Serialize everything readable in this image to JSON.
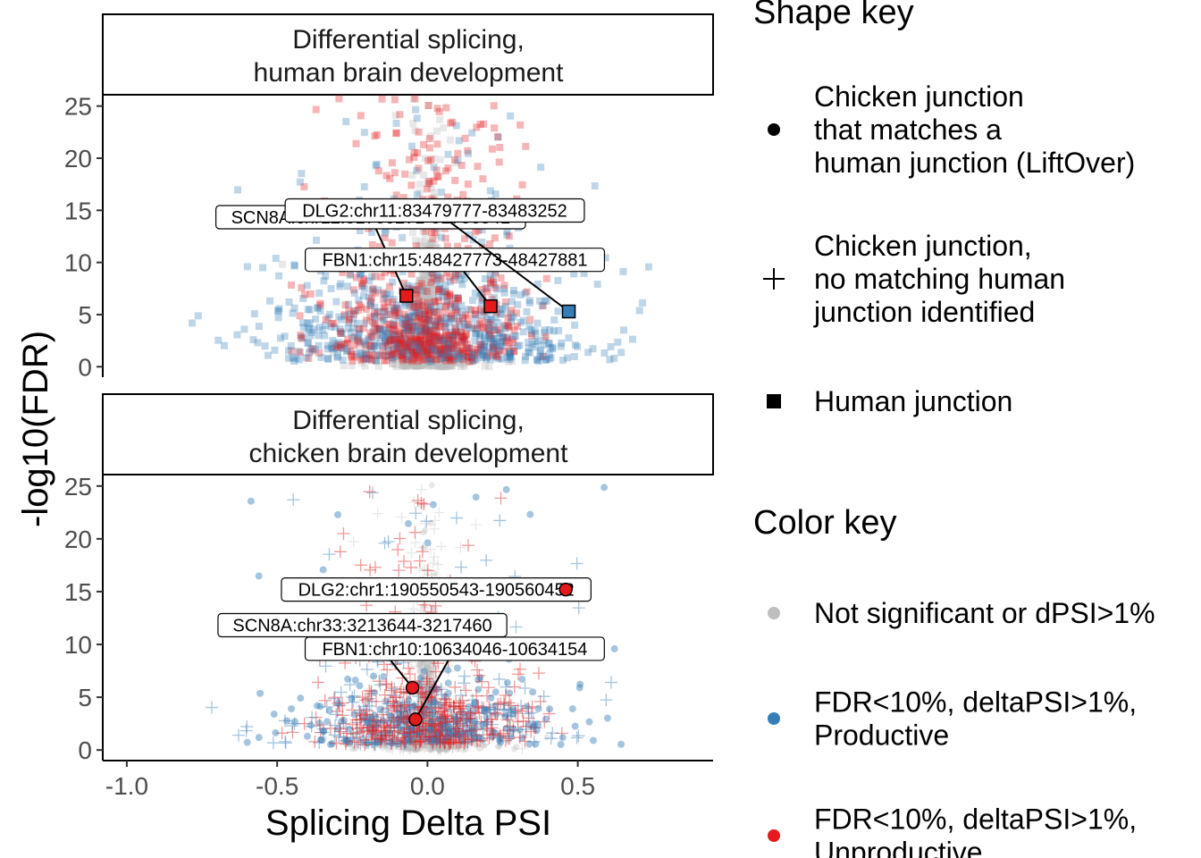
{
  "colors": {
    "not_significant": "#BEBEBE",
    "productive": "#377EB8",
    "unproductive": "#E41A1C"
  },
  "chart_data": [
    {
      "type": "scatter",
      "panel": "top",
      "title_line1": "Differential splicing,",
      "title_line2": "human brain development",
      "xlabel": "Splicing Delta PSI",
      "ylabel": "-log10(FDR)",
      "xlim": [
        -1.08,
        0.95
      ],
      "ylim": [
        -1.0,
        26.0
      ],
      "x_ticks": [
        -1.0,
        -0.5,
        0.0,
        0.5
      ],
      "x_tick_labels": [
        "-1.0",
        "-0.5",
        "0.0",
        "0.5"
      ],
      "y_ticks": [
        0,
        5,
        10,
        15,
        20,
        25
      ],
      "y_tick_labels": [
        "0",
        "5",
        "10",
        "15",
        "20",
        "25"
      ],
      "shape": "square",
      "highlighted_points": [
        {
          "gene_label": "SCN8A:chr12:51780271-51786541",
          "x": -0.07,
          "y": 6.8,
          "category": "unproductive"
        },
        {
          "gene_label": "FBN1:chr15:48427773-48427881",
          "x": 0.21,
          "y": 5.8,
          "category": "unproductive"
        },
        {
          "gene_label": "DLG2:chr11:83479777-83483252",
          "x": 0.47,
          "y": 5.3,
          "category": "productive"
        }
      ]
    },
    {
      "type": "scatter",
      "panel": "bottom",
      "title_line1": "Differential splicing,",
      "title_line2": "chicken brain development",
      "xlabel": "Splicing Delta PSI",
      "ylabel": "-log10(FDR)",
      "xlim": [
        -1.08,
        0.95
      ],
      "ylim": [
        -1.0,
        26.0
      ],
      "x_ticks": [
        -1.0,
        -0.5,
        0.0,
        0.5
      ],
      "x_tick_labels": [
        "-1.0",
        "-0.5",
        "0.0",
        "0.5"
      ],
      "y_ticks": [
        0,
        5,
        10,
        15,
        20,
        25
      ],
      "y_tick_labels": [
        "0",
        "5",
        "10",
        "15",
        "20",
        "25"
      ],
      "shape": "circle-and-cross",
      "highlighted_points": [
        {
          "gene_label": "DLG2:chr1:190550543-190560452",
          "x": 0.46,
          "y": 15.2,
          "category": "unproductive"
        },
        {
          "gene_label": "SCN8A:chr33:3213644-3217460",
          "x": -0.05,
          "y": 5.9,
          "category": "unproductive"
        },
        {
          "gene_label": "FBN1:chr10:10634046-10634154",
          "x": -0.04,
          "y": 2.9,
          "category": "unproductive"
        }
      ]
    }
  ],
  "axis": {
    "x_title": "Splicing Delta PSI",
    "y_title": "-log10(FDR)"
  },
  "legend": {
    "shape_title": "Shape key",
    "shape_items": [
      {
        "icon": "filled-circle-icon",
        "lines": [
          "Chicken junction",
          "that matches a",
          "human junction (LiftOver)"
        ]
      },
      {
        "icon": "plus-cross-icon",
        "lines": [
          "Chicken junction,",
          "no matching human",
          "junction identified"
        ]
      },
      {
        "icon": "filled-square-icon",
        "lines": [
          "Human junction"
        ]
      }
    ],
    "color_title": "Color key",
    "color_items": [
      {
        "color_key": "not_significant",
        "lines": [
          "Not significant or dPSI>1%"
        ]
      },
      {
        "color_key": "productive",
        "lines": [
          "FDR<10%, deltaPSI>1%,",
          "Productive"
        ]
      },
      {
        "color_key": "unproductive",
        "lines": [
          "FDR<10%, deltaPSI>1%,",
          "Unproductive"
        ]
      }
    ]
  }
}
